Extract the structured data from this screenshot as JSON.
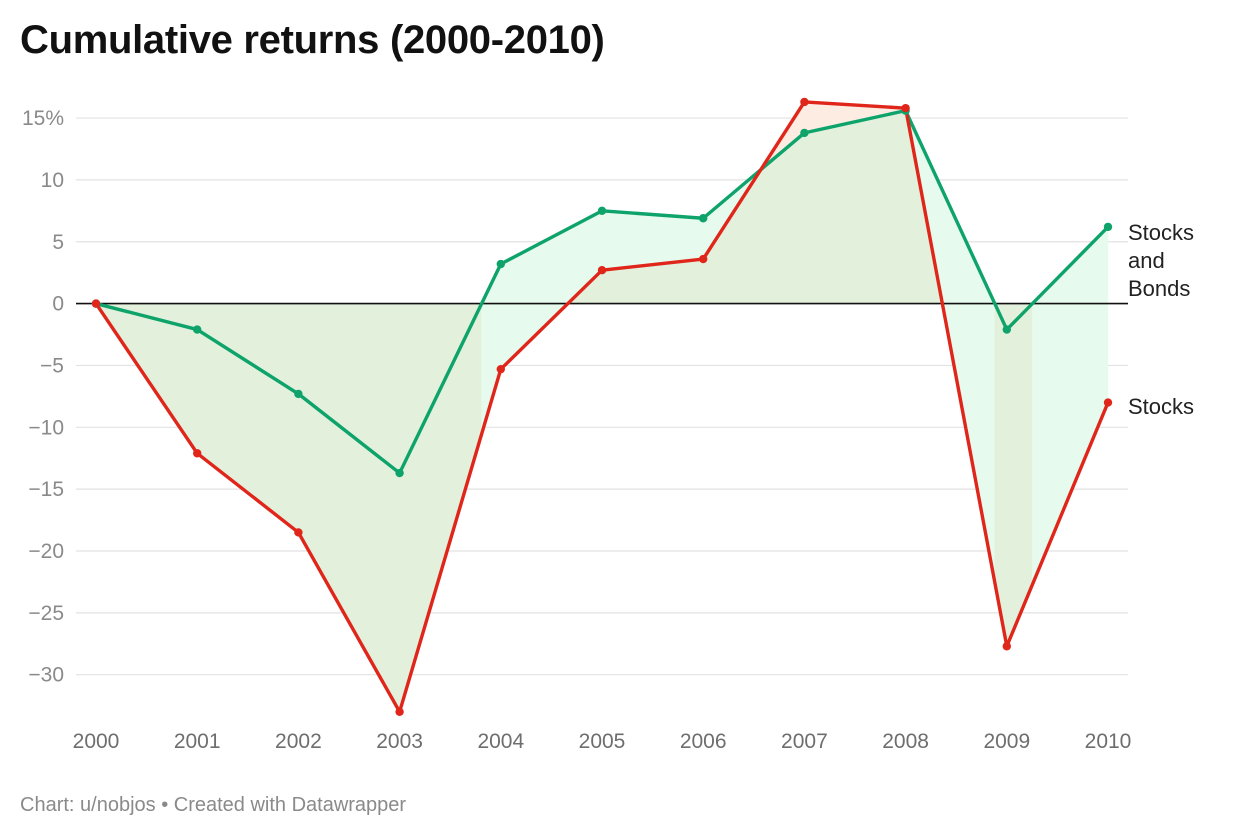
{
  "title": "Cumulative returns (2000-2010)",
  "footer": "Chart: u/nobjos • Created with Datawrapper",
  "chart_data": {
    "type": "line",
    "title": "Cumulative returns (2000-2010)",
    "x": [
      "2000",
      "2001",
      "2002",
      "2003",
      "2004",
      "2005",
      "2006",
      "2007",
      "2008",
      "2009",
      "2010"
    ],
    "ylim": [
      -33,
      17
    ],
    "y_ticks": [
      15,
      10,
      5,
      0,
      -5,
      -10,
      -15,
      -20,
      -25,
      -30
    ],
    "y_tick_labels": [
      "15%",
      "10",
      "5",
      "0",
      "−5",
      "−10",
      "−15",
      "−20",
      "−25",
      "−30"
    ],
    "grid": true,
    "legend": "direct labels at right end of lines",
    "series": [
      {
        "name": "Stocks and Bonds",
        "label_lines": [
          "Stocks",
          "and",
          "Bonds"
        ],
        "color": "#0da36b",
        "values": [
          0,
          -2.1,
          -7.3,
          -13.7,
          3.2,
          7.5,
          6.9,
          13.8,
          15.6,
          -2.1,
          6.2
        ]
      },
      {
        "name": "Stocks",
        "label_lines": [
          "Stocks"
        ],
        "color": "#e0261a",
        "values": [
          0,
          -12.1,
          -18.5,
          -33,
          -5.3,
          2.7,
          3.6,
          16.3,
          15.8,
          -27.7,
          -8.0
        ]
      }
    ],
    "fill_colors": {
      "between_when_first_higher": "#e6fbee",
      "between_when_second_higher": "#fdece2",
      "overlap_below_zero": "#e3f0db"
    }
  }
}
